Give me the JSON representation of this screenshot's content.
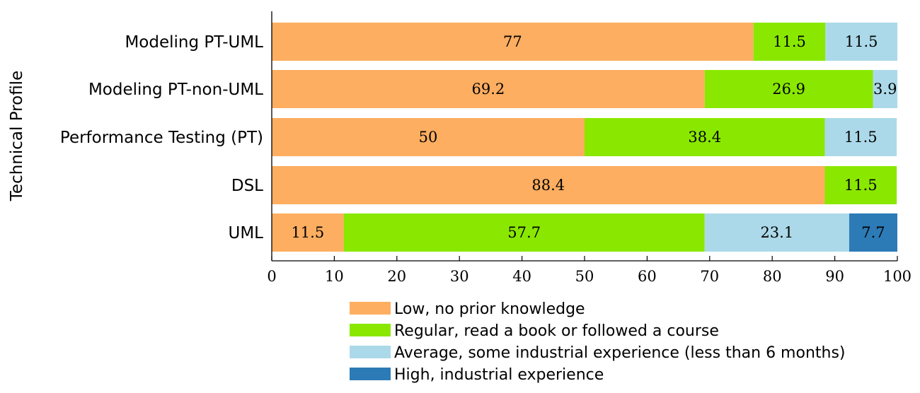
{
  "chart_data": {
    "type": "bar",
    "orientation": "horizontal",
    "stacked": true,
    "ylabel": "Technical Profile",
    "xlabel": "",
    "xlim": [
      0,
      100
    ],
    "xticks": [
      0,
      10,
      20,
      30,
      40,
      50,
      60,
      70,
      80,
      90,
      100
    ],
    "categories": [
      "Modeling PT-UML",
      "Modeling PT-non-UML",
      "Performance Testing (PT)",
      "DSL",
      "UML"
    ],
    "series": [
      {
        "name": "Low, no prior knowledge",
        "color": "#fdae61",
        "values": [
          77,
          69.2,
          50,
          88.4,
          11.5
        ]
      },
      {
        "name": "Regular, read a book or followed a course",
        "color": "#8ae800",
        "values": [
          11.5,
          26.9,
          38.4,
          11.5,
          57.7
        ]
      },
      {
        "name": "Average, some industrial experience (less than 6 months)",
        "color": "#abd9e9",
        "values": [
          11.5,
          3.9,
          11.5,
          null,
          23.1
        ]
      },
      {
        "name": "High, industrial experience",
        "color": "#2c7bb6",
        "values": [
          null,
          null,
          null,
          null,
          7.7
        ]
      }
    ],
    "legend_position": "bottom"
  }
}
